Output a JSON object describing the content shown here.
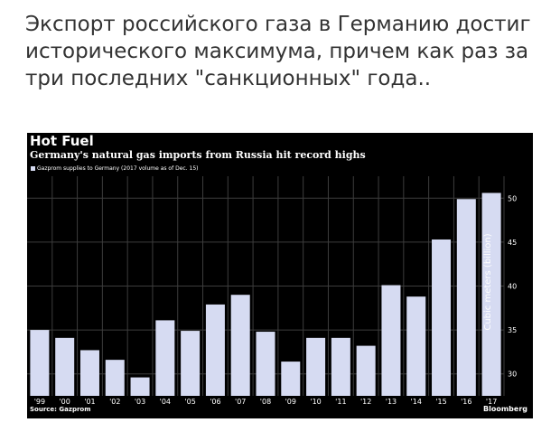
{
  "post": {
    "text": "Экспорт российского газа в Германию достиг исторического максимума, причем как раз за три последних \"санкционных\" года.."
  },
  "chart_data": {
    "type": "bar",
    "title": "Hot Fuel",
    "subtitle": "Germany's natural gas imports from Russia hit record highs",
    "legend": [
      "Gazprom supplies to Germany (2017 volume as of Dec. 15)"
    ],
    "ylabel": "Cubic meters (billion)",
    "source": "Source: Gazprom",
    "brand": "Bloomberg",
    "categories": [
      "'99",
      "'00",
      "'01",
      "'02",
      "'03",
      "'04",
      "'05",
      "'06",
      "'07",
      "'08",
      "'09",
      "'10",
      "'11",
      "'12",
      "'13",
      "'14",
      "'15",
      "'16",
      "'17"
    ],
    "values": [
      35.0,
      34.1,
      32.7,
      31.6,
      29.6,
      36.1,
      34.9,
      37.9,
      39.0,
      34.8,
      31.4,
      34.1,
      34.1,
      33.2,
      40.1,
      38.8,
      45.3,
      49.9,
      50.6
    ],
    "ylim": [
      27.5,
      52.5
    ],
    "yticks": [
      30,
      35,
      40,
      45,
      50
    ],
    "bar_color": "#d6dbf2",
    "background_color": "#000000",
    "grid": true
  }
}
